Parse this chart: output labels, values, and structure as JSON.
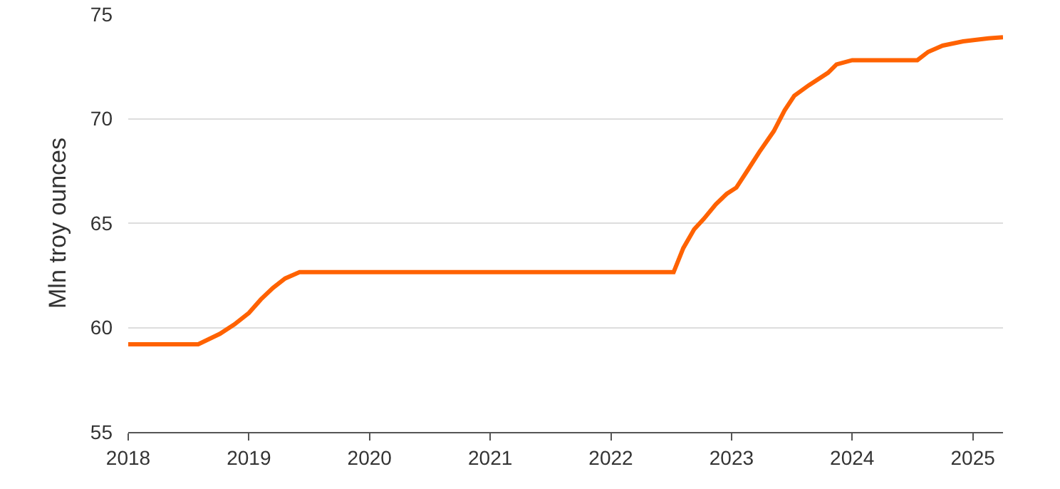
{
  "chart_data": {
    "type": "line",
    "ylabel": "Mln troy ounces",
    "x": [
      2018.0,
      2018.58,
      2018.76,
      2018.88,
      2019.0,
      2019.1,
      2019.2,
      2019.3,
      2019.42,
      2022.52,
      2022.6,
      2022.69,
      2022.77,
      2022.87,
      2022.96,
      2023.04,
      2023.13,
      2023.23,
      2023.35,
      2023.44,
      2023.52,
      2023.64,
      2023.8,
      2023.87,
      2024.0,
      2024.54,
      2024.63,
      2024.75,
      2024.92,
      2025.13,
      2025.25
    ],
    "series": [
      {
        "color": "#ff6200",
        "values": [
          59.2,
          59.2,
          59.7,
          60.15,
          60.7,
          61.35,
          61.9,
          62.35,
          62.65,
          62.65,
          63.8,
          64.7,
          65.2,
          65.9,
          66.4,
          66.7,
          67.5,
          68.4,
          69.4,
          70.4,
          71.1,
          71.6,
          72.2,
          72.6,
          72.8,
          72.8,
          73.2,
          73.5,
          73.7,
          73.85,
          73.9
        ]
      }
    ],
    "xlim": [
      2018,
      2025.25
    ],
    "xticks": [
      2018,
      2019,
      2020,
      2021,
      2022,
      2023,
      2024,
      2025
    ],
    "ylim": [
      55,
      75
    ],
    "yticks": [
      55,
      60,
      65,
      70,
      75
    ],
    "grid": "y",
    "legend": false,
    "marker": "none",
    "line_style": "solid"
  }
}
